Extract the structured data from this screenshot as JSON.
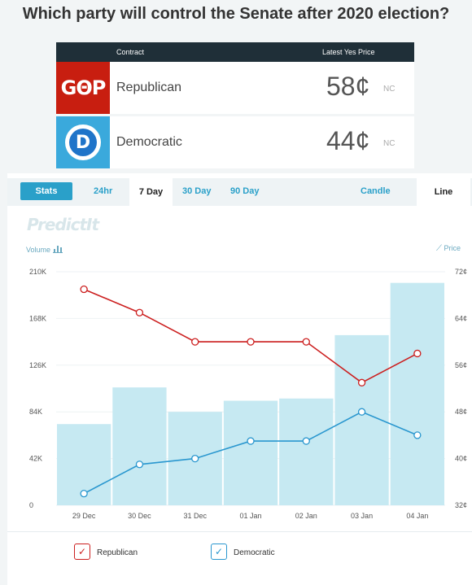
{
  "title": "Which party will control the Senate after 2020 election?",
  "market": {
    "col_contract": "Contract",
    "col_price": "Latest Yes Price",
    "rows": [
      {
        "logo_text": "GΘP",
        "name": "Republican",
        "price": "58¢",
        "change": "NC"
      },
      {
        "logo_text": "D",
        "name": "Democratic",
        "price": "44¢",
        "change": "NC"
      }
    ]
  },
  "tabs": {
    "stats": "Stats",
    "h24": "24hr",
    "d7": "7 Day",
    "d30": "30 Day",
    "d90": "90 Day",
    "candle": "Candle",
    "line": "Line"
  },
  "brand": "PredictIt",
  "chart_labels": {
    "volume": "Volume",
    "price": "Price"
  },
  "legend": {
    "republican": "Republican",
    "democratic": "Democratic"
  },
  "colors": {
    "republican": "#cc1f1f",
    "democratic": "#2a97cf",
    "volume": "#c6e9f2",
    "accent": "#2aa0c9"
  },
  "chart_data": {
    "type": "bar+line",
    "categories": [
      "29 Dec",
      "30 Dec",
      "31 Dec",
      "01 Jan",
      "02 Jan",
      "03 Jan",
      "04 Jan"
    ],
    "volume": [
      73000,
      106000,
      84000,
      94000,
      96000,
      153000,
      200000
    ],
    "volume_ylim": [
      0,
      210000
    ],
    "volume_ticks": [
      "0",
      "42K",
      "84K",
      "126K",
      "168K",
      "210K"
    ],
    "price_ylim": [
      32,
      72
    ],
    "price_ticks": [
      "32¢",
      "40¢",
      "48¢",
      "56¢",
      "64¢",
      "72¢"
    ],
    "series": [
      {
        "name": "Republican",
        "values": [
          69,
          65,
          60,
          60,
          60,
          53,
          58
        ]
      },
      {
        "name": "Democratic",
        "values": [
          34,
          39,
          40,
          43,
          43,
          48,
          44
        ]
      }
    ]
  }
}
